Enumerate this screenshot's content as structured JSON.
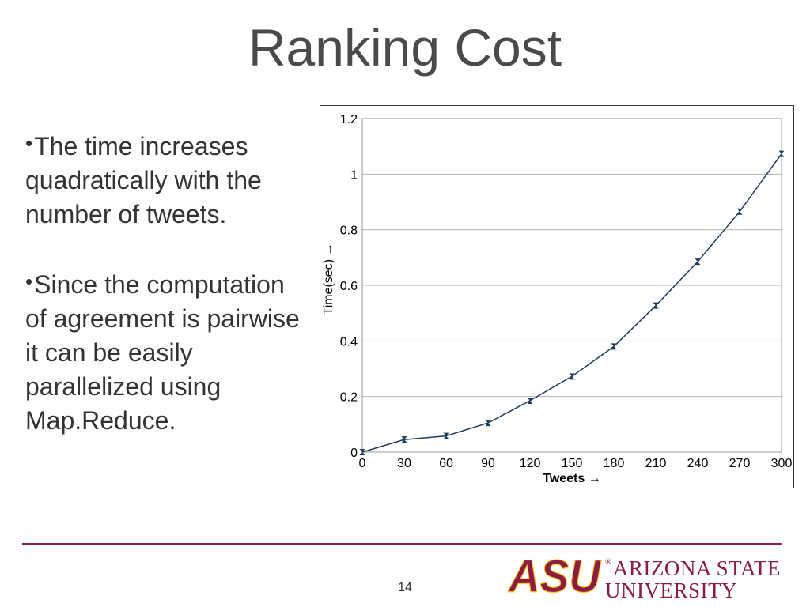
{
  "slide": {
    "title": "Ranking Cost",
    "bullets": [
      "The time increases quadratically with the number of tweets.",
      "Since the computation of agreement is pairwise it can be easily parallelized using Map.Reduce."
    ],
    "page_number": "14",
    "logo": {
      "mark_text": "ASU",
      "line1": "ARIZONA STATE",
      "line2": "UNIVERSITY",
      "reg_mark": "®"
    }
  },
  "colors": {
    "brand": "#8c1d40",
    "series": "#1f3b5c",
    "grid": "#b3b3b3",
    "text": "#333333"
  },
  "chart_data": {
    "type": "line",
    "xlabel": "Tweets →",
    "ylabel": "Time(sec) →",
    "x": [
      0,
      30,
      60,
      90,
      120,
      150,
      180,
      210,
      240,
      270,
      300
    ],
    "x_tick_labels": [
      "0",
      "30",
      "60",
      "90",
      "120",
      "150",
      "180",
      "210",
      "240",
      "270",
      "300"
    ],
    "y_tick_labels": [
      "0",
      "0.2",
      "0.4",
      "0.6",
      "0.8",
      "1",
      "1.2"
    ],
    "y_ticks": [
      0,
      0.2,
      0.4,
      0.6,
      0.8,
      1.0,
      1.2
    ],
    "xlim": [
      0,
      300
    ],
    "ylim": [
      0,
      1.2
    ],
    "grid": "horizontal",
    "series": [
      {
        "values": [
          0.0,
          0.045,
          0.058,
          0.105,
          0.185,
          0.272,
          0.38,
          0.527,
          0.685,
          0.865,
          1.073
        ]
      }
    ]
  }
}
